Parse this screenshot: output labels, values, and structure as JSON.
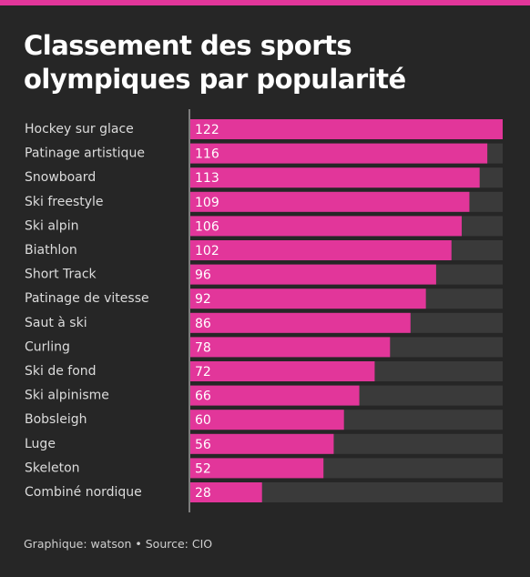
{
  "chart_data": {
    "type": "bar",
    "orientation": "horizontal",
    "title": "Classement des sports olympiques par popularité",
    "source": "Graphique: watson • Source: CIO",
    "categories": [
      "Hockey sur glace",
      "Patinage artistique",
      "Snowboard",
      "Ski freestyle",
      "Ski alpin",
      "Biathlon",
      "Short Track",
      "Patinage de vitesse",
      "Saut à ski",
      "Curling",
      "Ski de fond",
      "Ski alpinisme",
      "Bobsleigh",
      "Luge",
      "Skeleton",
      "Combiné nordique"
    ],
    "values": [
      122,
      116,
      113,
      109,
      106,
      102,
      96,
      92,
      86,
      78,
      72,
      66,
      60,
      56,
      52,
      28
    ],
    "color": "#e2369a",
    "xlim": [
      0,
      122
    ]
  }
}
